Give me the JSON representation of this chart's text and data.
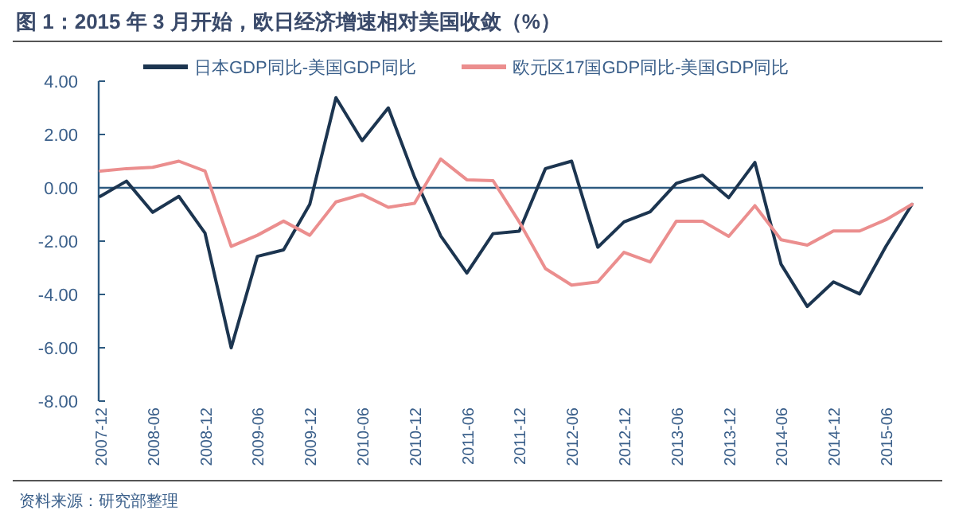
{
  "chart_data": {
    "type": "line",
    "title": "图 1：2015 年 3 月开始，欧日经济增速相对美国收敛（%）",
    "categories": [
      "2007-12",
      null,
      "2008-06",
      null,
      "2008-12",
      null,
      "2009-06",
      null,
      "2009-12",
      null,
      "2010-06",
      null,
      "2010-12",
      null,
      "2011-06",
      null,
      "2011-12",
      null,
      "2012-06",
      null,
      "2012-12",
      null,
      "2013-06",
      null,
      "2013-12",
      null,
      "2014-06",
      null,
      "2014-12",
      null,
      "2015-06",
      null
    ],
    "series": [
      {
        "name": "日本GDP同比-美国GDP同比",
        "color": "#1c3550",
        "values": [
          -0.32,
          0.25,
          -0.92,
          -0.32,
          -1.7,
          -6.0,
          -2.57,
          -2.33,
          -0.62,
          3.38,
          1.77,
          3.0,
          0.4,
          -1.8,
          -3.2,
          -1.72,
          -1.63,
          0.72,
          1.0,
          -2.23,
          -1.28,
          -0.9,
          0.17,
          0.47,
          -0.37,
          0.95,
          -2.87,
          -4.45,
          -3.53,
          -3.98,
          -2.2,
          -0.62
        ]
      },
      {
        "name": "欧元区17国GDP同比-美国GDP同比",
        "color": "#eb8e8e",
        "values": [
          0.63,
          0.72,
          0.77,
          1.0,
          0.63,
          -2.2,
          -1.78,
          -1.25,
          -1.78,
          -0.53,
          -0.25,
          -0.73,
          -0.58,
          1.08,
          0.3,
          0.27,
          -1.28,
          -3.03,
          -3.65,
          -3.53,
          -2.42,
          -2.78,
          -1.25,
          -1.25,
          -1.82,
          -0.67,
          -1.95,
          -2.15,
          -1.62,
          -1.62,
          -1.2,
          -0.62
        ]
      }
    ],
    "ylim": [
      -8,
      4
    ],
    "yticks": [
      {
        "value": -8,
        "label": "-8.00"
      },
      {
        "value": -6,
        "label": "-6.00"
      },
      {
        "value": -4,
        "label": "-4.00"
      },
      {
        "value": -2,
        "label": "-2.00"
      },
      {
        "value": 0,
        "label": "0.00"
      },
      {
        "value": 2,
        "label": "2.00"
      },
      {
        "value": 4,
        "label": "4.00"
      }
    ],
    "ref_lines": [
      {
        "axis": "y",
        "value": 0,
        "color": "#2d5a80"
      }
    ],
    "legend": "top",
    "grid": false,
    "annotations": [
      "资料来源：研究部整理"
    ]
  }
}
